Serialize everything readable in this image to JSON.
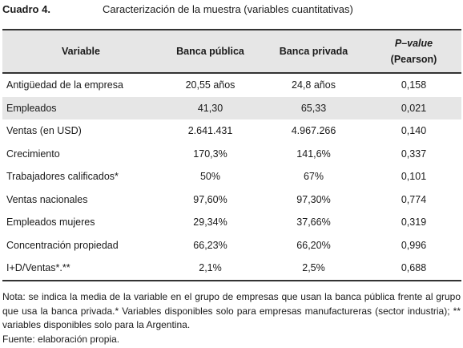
{
  "caption": {
    "number": "Cuadro 4.",
    "title": "Caracterización de la muestra (variables cuantitativas)"
  },
  "table": {
    "headers": {
      "variable": "Variable",
      "publica": "Banca pública",
      "privada": "Banca privada",
      "pvalue_italic": "P–value",
      "pvalue_sub": "(Pearson)"
    },
    "rows": [
      {
        "variable": "Antigüedad de la empresa",
        "publica": "20,55 años",
        "privada": "24,8 años",
        "pvalue": "0,158"
      },
      {
        "variable": "Empleados",
        "publica": "41,30",
        "privada": "65,33",
        "pvalue": "0,021"
      },
      {
        "variable": "Ventas (en USD)",
        "publica": "2.641.431",
        "privada": "4.967.266",
        "pvalue": "0,140"
      },
      {
        "variable": "Crecimiento",
        "publica": "170,3%",
        "privada": "141,6%",
        "pvalue": "0,337"
      },
      {
        "variable": "Trabajadores calificados*",
        "publica": "50%",
        "privada": "67%",
        "pvalue": "0,101"
      },
      {
        "variable": "Ventas nacionales",
        "publica": "97,60%",
        "privada": "97,30%",
        "pvalue": "0,774"
      },
      {
        "variable": "Empleados mujeres",
        "publica": "29,34%",
        "privada": "37,66%",
        "pvalue": "0,319"
      },
      {
        "variable": "Concentración propiedad",
        "publica": "66,23%",
        "privada": "66,20%",
        "pvalue": "0,996"
      },
      {
        "variable": "I+D/Ventas*.**",
        "publica": "2,1%",
        "privada": "2,5%",
        "pvalue": "0,688"
      }
    ]
  },
  "notes": {
    "nota": "Nota: se indica la media de la variable en el grupo de empresas que usan la banca pública frente al grupo que usa la banca privada.* Variables disponibles solo para empresas manufactureras (sector industria); ** variables disponibles solo para la Argentina.",
    "fuente": "Fuente: elaboración propia."
  }
}
